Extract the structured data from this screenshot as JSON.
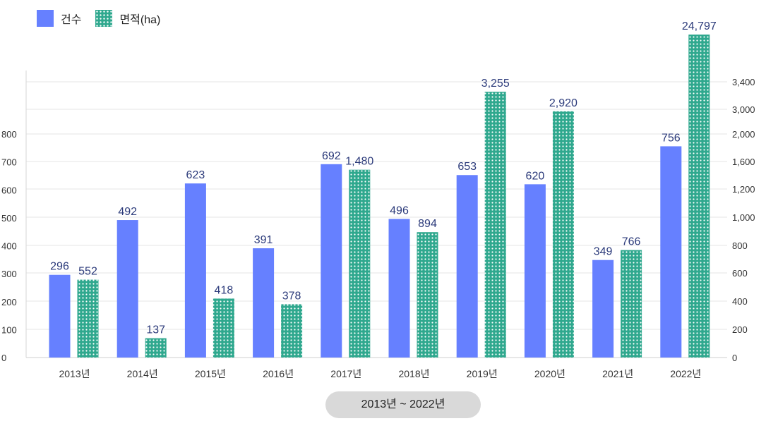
{
  "legend": {
    "count_label": "건수",
    "area_label": "면적(ha)"
  },
  "colors": {
    "count": "#6680ff",
    "area": "#2fa88e",
    "value_label": "#2b3a7a",
    "axis_text": "#333333",
    "grid": "#e6e6e6"
  },
  "range_label": "2013년 ~ 2022년",
  "chart_data": {
    "type": "bar",
    "title": "",
    "categories": [
      "2013년",
      "2014년",
      "2015년",
      "2016년",
      "2017년",
      "2018년",
      "2019년",
      "2020년",
      "2021년",
      "2022년"
    ],
    "series": [
      {
        "name": "건수",
        "axis": "left",
        "values": [
          296,
          492,
          623,
          391,
          692,
          496,
          653,
          620,
          349,
          756
        ],
        "labels": [
          "296",
          "492",
          "623",
          "391",
          "692",
          "496",
          "653",
          "620",
          "349",
          "756"
        ]
      },
      {
        "name": "면적(ha)",
        "axis": "right",
        "values": [
          552,
          137,
          418,
          378,
          1480,
          894,
          3255,
          2920,
          766,
          24797
        ],
        "labels": [
          "552",
          "137",
          "418",
          "378",
          "1,480",
          "894",
          "3,255",
          "2,920",
          "766",
          "24,797"
        ]
      }
    ],
    "y_left": {
      "ticks": [
        0,
        100,
        200,
        300,
        400,
        500,
        600,
        700,
        800
      ],
      "tick_labels": [
        "0",
        "100",
        "200",
        "300",
        "400",
        "500",
        "600",
        "700",
        "800"
      ]
    },
    "y_right": {
      "scale": "piecewise (broken axis)",
      "ticks": [
        0,
        200,
        400,
        600,
        800,
        1000,
        1200,
        1600,
        2000,
        3000,
        3400
      ],
      "tick_labels": [
        "0",
        "200",
        "400",
        "600",
        "800",
        "1,000",
        "1,200",
        "1,600",
        "2,000",
        "3,000",
        "3,400"
      ]
    },
    "grid": true,
    "legend_position": "top-left"
  }
}
